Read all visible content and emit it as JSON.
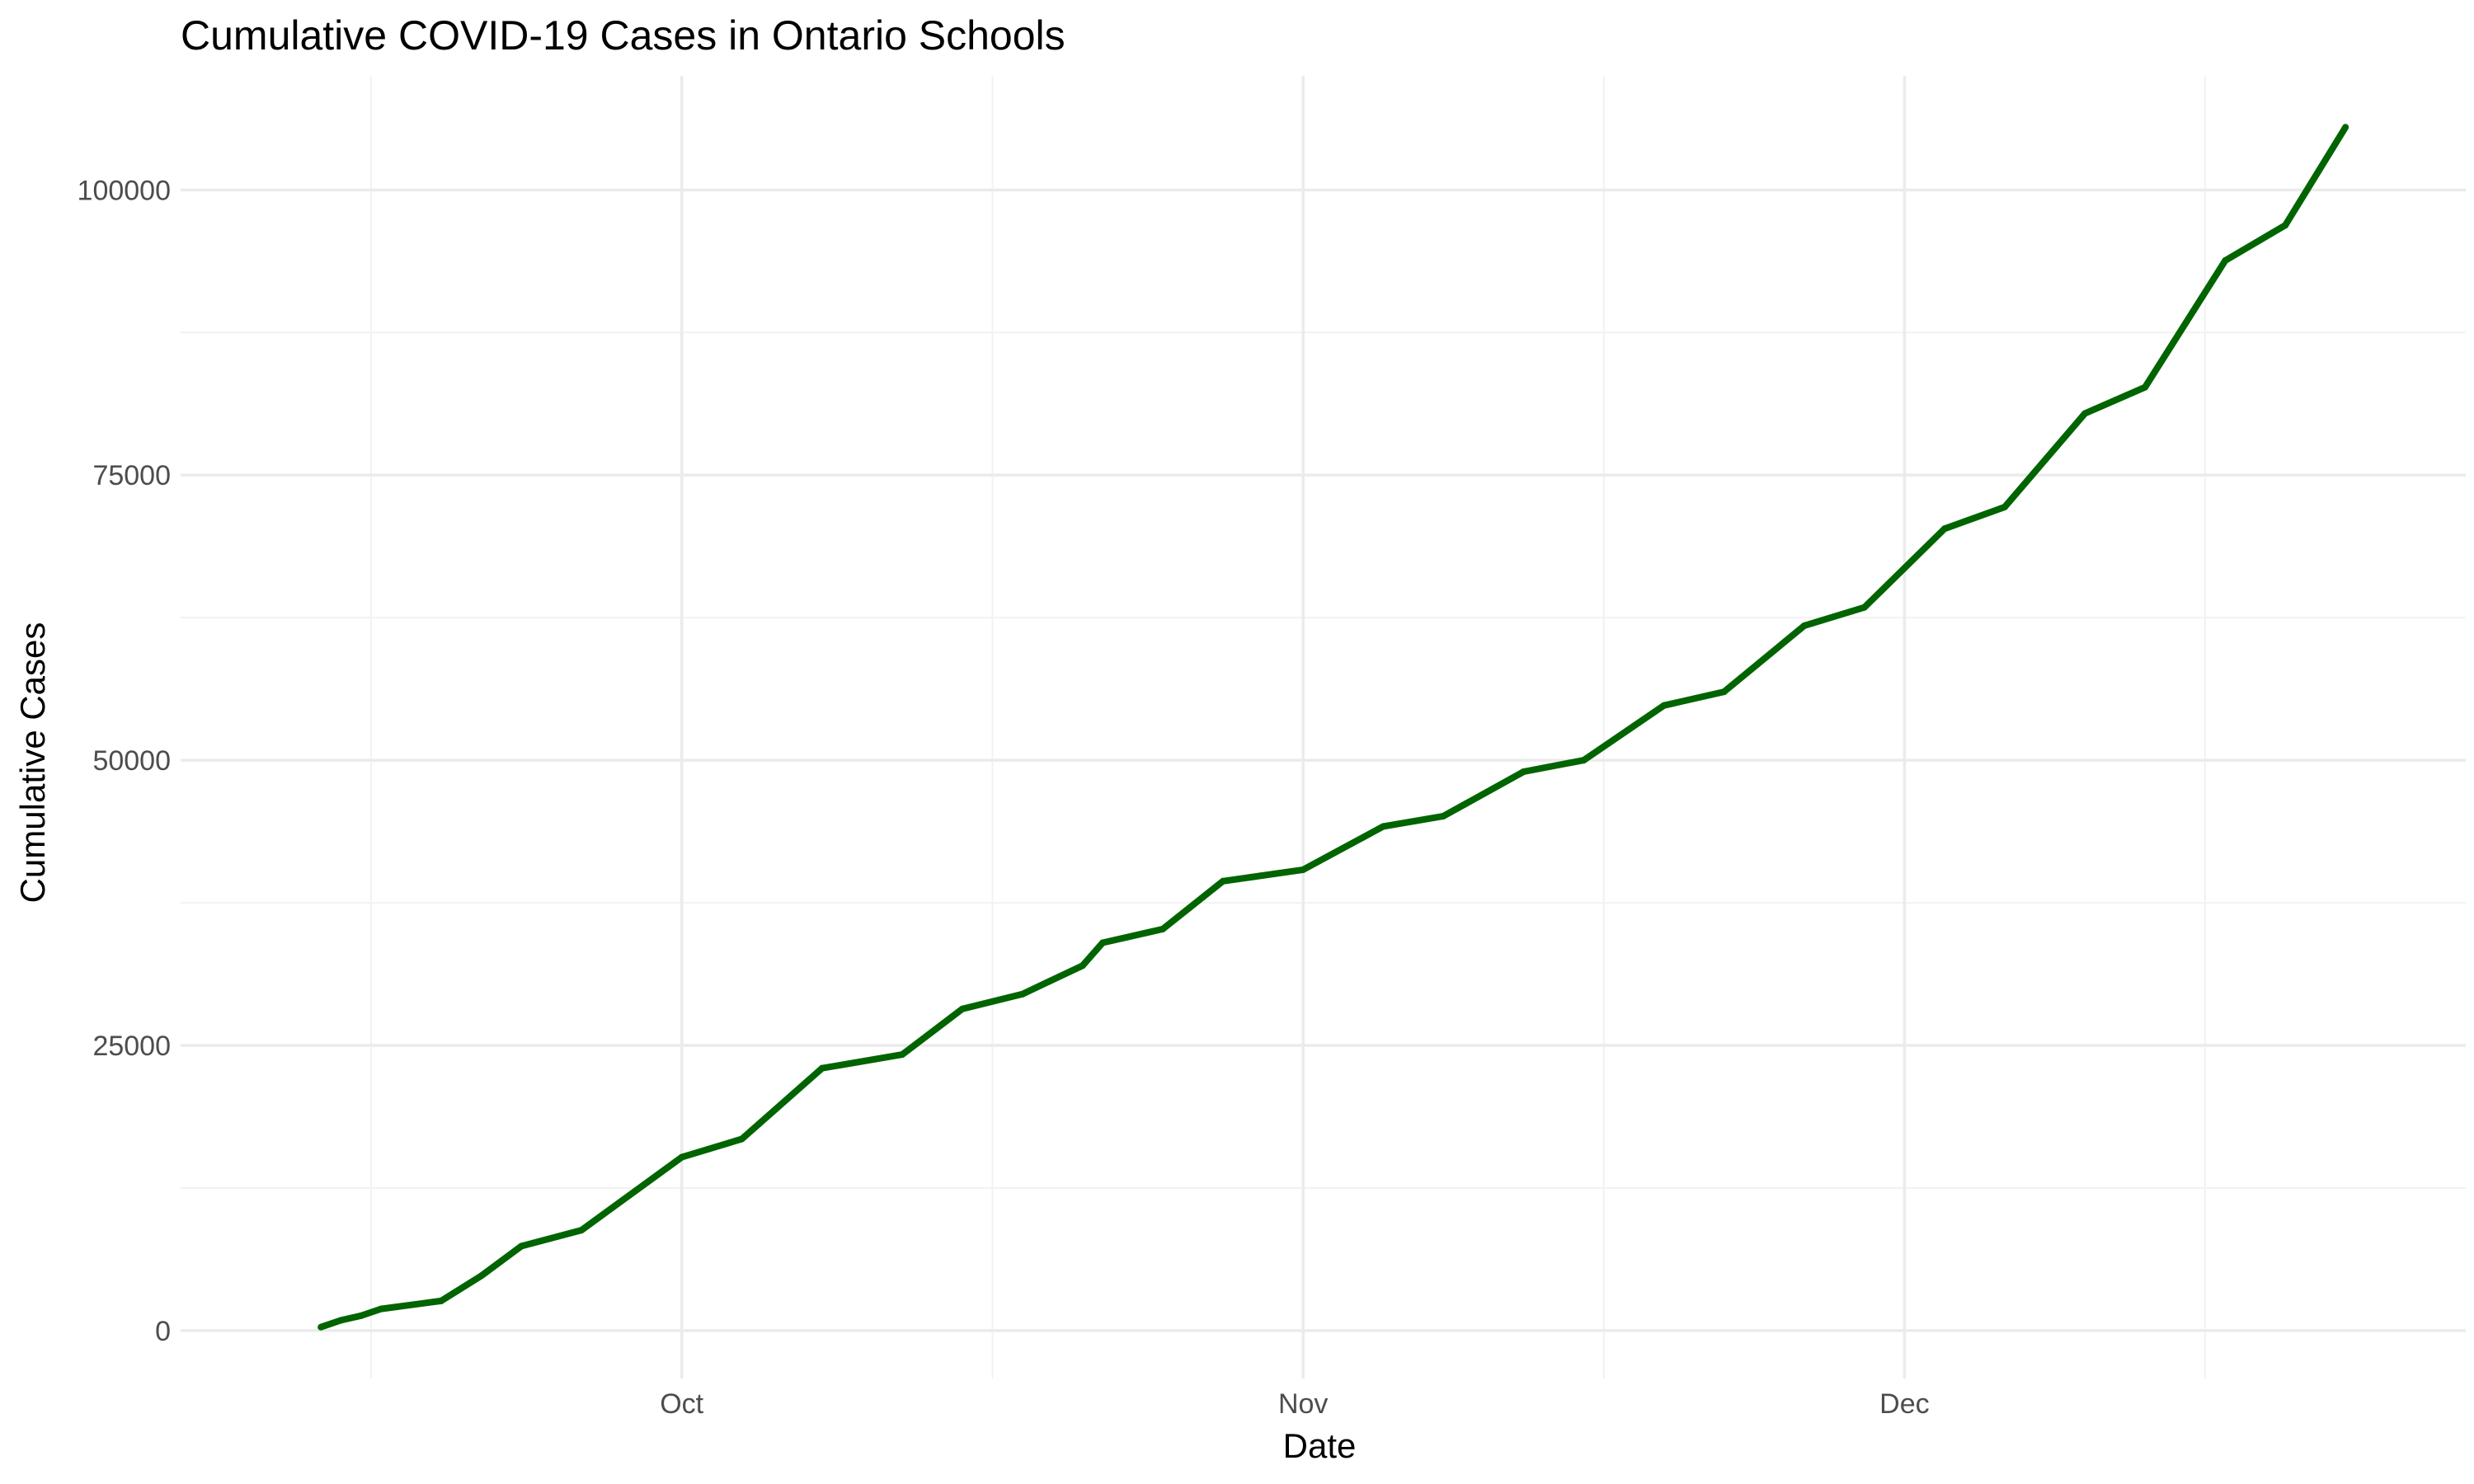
{
  "chart_data": {
    "type": "line",
    "title": "Cumulative COVID-19 Cases in Ontario Schools",
    "xlabel": "Date",
    "ylabel": "Cumulative Cases",
    "ylim": [
      -4200,
      110000
    ],
    "xlim": [
      "2021-09-06",
      "2021-12-29"
    ],
    "x_ticks": [
      {
        "date": "2021-10-01",
        "label": "Oct"
      },
      {
        "date": "2021-11-01",
        "label": "Nov"
      },
      {
        "date": "2021-12-01",
        "label": "Dec"
      }
    ],
    "y_ticks": [
      {
        "value": 0,
        "label": "0"
      },
      {
        "value": 25000,
        "label": "25000"
      },
      {
        "value": 50000,
        "label": "50000"
      },
      {
        "value": 75000,
        "label": "75000"
      },
      {
        "value": 100000,
        "label": "100000"
      }
    ],
    "grid": true,
    "line_color": "#006400",
    "series": [
      {
        "points": [
          {
            "date": "2021-09-13",
            "value": 300
          },
          {
            "date": "2021-09-14",
            "value": 900
          },
          {
            "date": "2021-09-15",
            "value": 1300
          },
          {
            "date": "2021-09-16",
            "value": 1900
          },
          {
            "date": "2021-09-19",
            "value": 2600
          },
          {
            "date": "2021-09-21",
            "value": 4800
          },
          {
            "date": "2021-09-23",
            "value": 7400
          },
          {
            "date": "2021-09-26",
            "value": 8800
          },
          {
            "date": "2021-10-01",
            "value": 15200
          },
          {
            "date": "2021-10-04",
            "value": 16800
          },
          {
            "date": "2021-10-08",
            "value": 23000
          },
          {
            "date": "2021-10-12",
            "value": 24200
          },
          {
            "date": "2021-10-15",
            "value": 28200
          },
          {
            "date": "2021-10-18",
            "value": 29500
          },
          {
            "date": "2021-10-21",
            "value": 32000
          },
          {
            "date": "2021-10-22",
            "value": 34000
          },
          {
            "date": "2021-10-25",
            "value": 35200
          },
          {
            "date": "2021-10-28",
            "value": 39400
          },
          {
            "date": "2021-11-01",
            "value": 40400
          },
          {
            "date": "2021-11-05",
            "value": 44200
          },
          {
            "date": "2021-11-08",
            "value": 45100
          },
          {
            "date": "2021-11-12",
            "value": 49000
          },
          {
            "date": "2021-11-15",
            "value": 50000
          },
          {
            "date": "2021-11-19",
            "value": 54800
          },
          {
            "date": "2021-11-22",
            "value": 56000
          },
          {
            "date": "2021-11-26",
            "value": 61800
          },
          {
            "date": "2021-11-29",
            "value": 63400
          },
          {
            "date": "2021-12-03",
            "value": 70300
          },
          {
            "date": "2021-12-06",
            "value": 72200
          },
          {
            "date": "2021-12-10",
            "value": 80400
          },
          {
            "date": "2021-12-13",
            "value": 82700
          },
          {
            "date": "2021-12-17",
            "value": 93800
          },
          {
            "date": "2021-12-20",
            "value": 96900
          },
          {
            "date": "2021-12-23",
            "value": 105500
          }
        ]
      }
    ]
  }
}
